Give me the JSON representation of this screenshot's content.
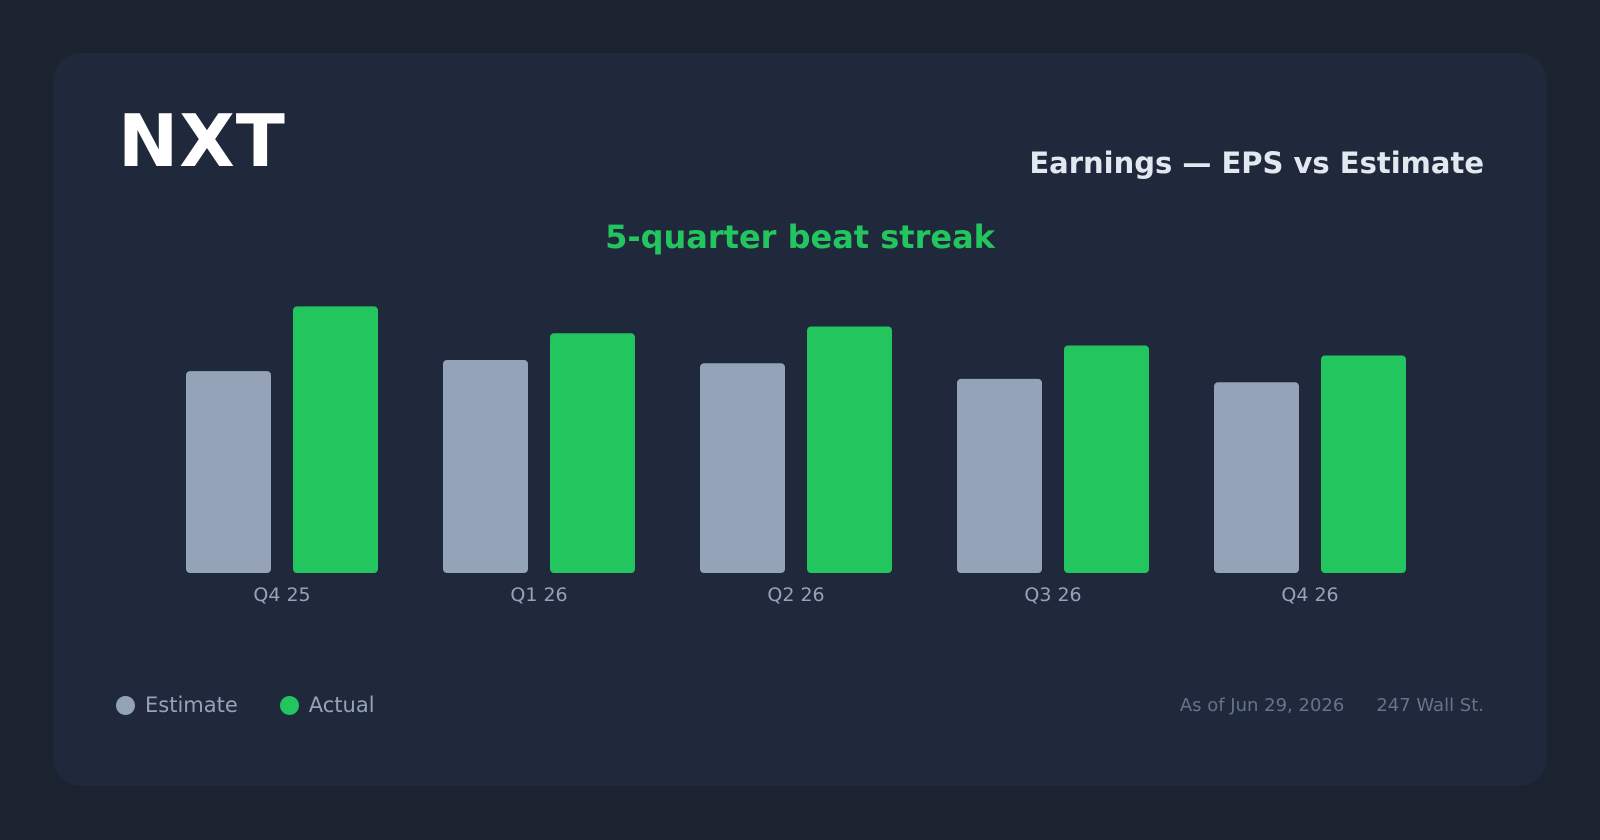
{
  "header": {
    "ticker": "NXT",
    "title": "Earnings — EPS vs Estimate",
    "streak": "5-quarter beat streak"
  },
  "footer": {
    "as_of": "As of Jun 29, 2026",
    "source": "247 Wall St."
  },
  "colors": {
    "estimate": "#94a3b8",
    "actual": "#22c55e"
  },
  "chart_data": {
    "type": "bar",
    "categories": [
      "Q4 25",
      "Q1 26",
      "Q2 26",
      "Q3 26",
      "Q4 26"
    ],
    "series": [
      {
        "name": "Estimate",
        "values": [
          1.81,
          1.91,
          1.88,
          1.74,
          1.71
        ]
      },
      {
        "name": "Actual",
        "values": [
          2.39,
          2.15,
          2.21,
          2.04,
          1.95
        ]
      }
    ],
    "ylim": [
      0,
      2.6
    ],
    "grid": false,
    "legend": "bottom-left"
  }
}
